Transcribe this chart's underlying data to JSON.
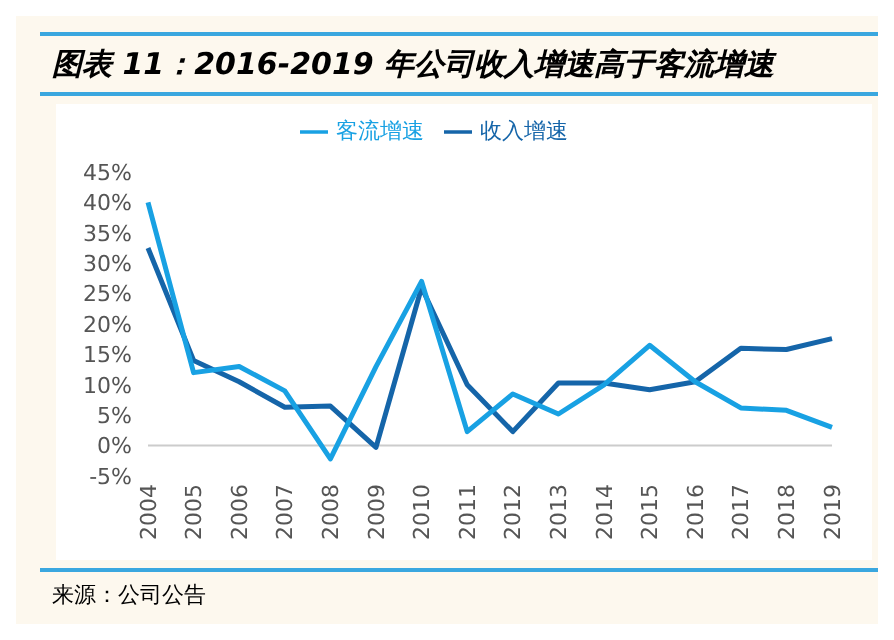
{
  "chart_data": {
    "type": "line",
    "title": "图表 11：2016-2019 年公司收入增速高于客流增速",
    "categories": [
      "2004",
      "2005",
      "2006",
      "2007",
      "2008",
      "2009",
      "2010",
      "2011",
      "2012",
      "2013",
      "2014",
      "2015",
      "2016",
      "2017",
      "2018",
      "2019"
    ],
    "series": [
      {
        "name": "收入增速",
        "color": "#1565a9",
        "values": [
          32.5,
          14,
          10.5,
          6.3,
          6.5,
          -0.3,
          26,
          10,
          2.3,
          10.3,
          10.3,
          9.2,
          10.5,
          16,
          15.8,
          17.6
        ]
      },
      {
        "name": "客流增速",
        "color": "#18a1e3",
        "values": [
          40,
          12,
          13,
          9,
          -2.2,
          13,
          27,
          2.3,
          8.5,
          5.2,
          10,
          16.5,
          10.5,
          6.2,
          5.8,
          3
        ]
      }
    ],
    "ylim": [
      -5,
      45
    ],
    "yticks": [
      {
        "value": -5,
        "label": "-5%"
      },
      {
        "value": 0,
        "label": "0%"
      },
      {
        "value": 5,
        "label": "5%"
      },
      {
        "value": 10,
        "label": "10%"
      },
      {
        "value": 15,
        "label": "15%"
      },
      {
        "value": 20,
        "label": "20%"
      },
      {
        "value": 25,
        "label": "25%"
      },
      {
        "value": 30,
        "label": "30%"
      },
      {
        "value": 35,
        "label": "35%"
      },
      {
        "value": 40,
        "label": "40%"
      },
      {
        "value": 45,
        "label": "45%"
      }
    ],
    "grid": false,
    "legend": "top",
    "marker": "none",
    "line_style": "solid",
    "annotations": [
      "来源：公司公告"
    ]
  }
}
